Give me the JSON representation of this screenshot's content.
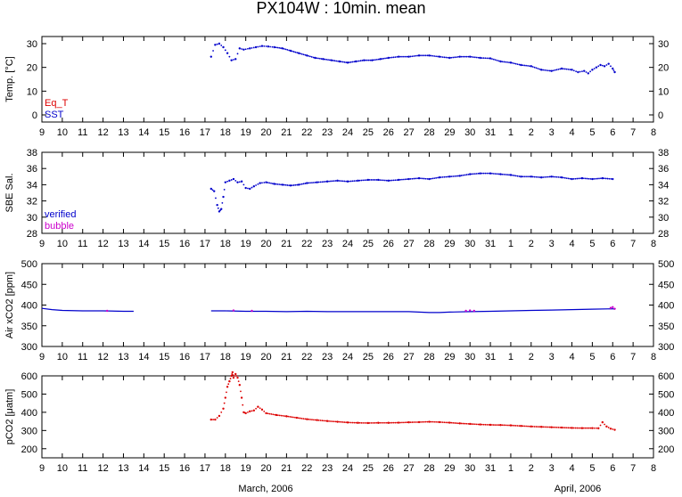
{
  "title": "PX104W : 10min. mean",
  "month_labels": [
    "March, 2006",
    "April, 2006"
  ],
  "x_tick_labels": [
    "9",
    "10",
    "11",
    "12",
    "13",
    "14",
    "15",
    "16",
    "17",
    "18",
    "19",
    "20",
    "21",
    "22",
    "23",
    "24",
    "25",
    "26",
    "27",
    "28",
    "29",
    "30",
    "31",
    "1",
    "2",
    "3",
    "4",
    "5",
    "6",
    "7",
    "8"
  ],
  "colors": {
    "red": "#dd0000",
    "blue": "#0000cc",
    "magenta": "#cc00cc",
    "frame": "#000000"
  },
  "chart_data": [
    {
      "type": "line",
      "id": "temp",
      "ylabel": "Temp. [°C]",
      "ylim": [
        -3,
        33
      ],
      "yticks": [
        0,
        10,
        20,
        30
      ],
      "legend": [
        {
          "name": "Eq_T",
          "color": "#dd0000"
        },
        {
          "name": "SST",
          "color": "#0000cc"
        }
      ],
      "series": [
        {
          "name": "SST",
          "color": "#0000cc",
          "style": "dots",
          "x": [
            17.3,
            17.5,
            17.7,
            17.9,
            18.1,
            18.3,
            18.5,
            18.7,
            18.9,
            19.2,
            19.5,
            19.8,
            20.1,
            20.4,
            20.8,
            21.2,
            21.6,
            22.0,
            22.4,
            22.8,
            23.2,
            23.6,
            24.0,
            24.4,
            24.8,
            25.2,
            25.6,
            26.0,
            26.5,
            27.0,
            27.5,
            28.0,
            28.5,
            29.0,
            29.5,
            30.0,
            30.5,
            31.0,
            31.5,
            32.0,
            32.5,
            33.0,
            33.5,
            34.0,
            34.5,
            35.0,
            35.3,
            35.6,
            35.8,
            36.0,
            36.2,
            36.4,
            36.6,
            36.8,
            37.0,
            37.1
          ],
          "y": [
            24.5,
            29.5,
            30.0,
            28.5,
            26.0,
            23.0,
            23.5,
            28.0,
            27.5,
            28.0,
            28.5,
            29.0,
            28.8,
            28.5,
            28.0,
            27.0,
            26.0,
            25.0,
            24.0,
            23.5,
            23.0,
            22.5,
            22.0,
            22.5,
            23.0,
            23.0,
            23.5,
            24.0,
            24.5,
            24.5,
            25.0,
            25.0,
            24.5,
            24.0,
            24.5,
            24.5,
            24.0,
            23.8,
            22.5,
            22.0,
            21.0,
            20.5,
            19.0,
            18.5,
            19.5,
            19.0,
            18.0,
            18.5,
            17.5,
            19.0,
            20.0,
            21.0,
            20.5,
            21.5,
            19.5,
            18.0
          ]
        }
      ]
    },
    {
      "type": "line",
      "id": "sal",
      "ylabel": "SBE Sal.",
      "ylim": [
        28,
        38
      ],
      "yticks": [
        28,
        30,
        32,
        34,
        36,
        38
      ],
      "legend": [
        {
          "name": "verified",
          "color": "#0000cc"
        },
        {
          "name": "bubble",
          "color": "#cc00cc"
        }
      ],
      "series": [
        {
          "name": "verified",
          "color": "#0000cc",
          "style": "dots",
          "x": [
            17.3,
            17.45,
            17.6,
            17.7,
            17.8,
            17.9,
            18.0,
            18.2,
            18.4,
            18.6,
            18.8,
            19.0,
            19.2,
            19.4,
            19.7,
            20.0,
            20.4,
            20.8,
            21.2,
            21.6,
            22.0,
            22.5,
            23.0,
            23.5,
            24.0,
            24.5,
            25.0,
            25.5,
            26.0,
            26.5,
            27.0,
            27.5,
            28.0,
            28.5,
            29.0,
            29.5,
            30.0,
            30.5,
            31.0,
            31.5,
            32.0,
            32.5,
            33.0,
            33.5,
            34.0,
            34.5,
            35.0,
            35.5,
            36.0,
            36.5,
            37.0
          ],
          "y": [
            33.5,
            33.2,
            31.5,
            30.7,
            31.0,
            32.5,
            34.3,
            34.5,
            34.7,
            34.3,
            34.4,
            33.6,
            33.5,
            33.8,
            34.2,
            34.3,
            34.1,
            34.0,
            33.9,
            34.0,
            34.2,
            34.3,
            34.4,
            34.5,
            34.4,
            34.5,
            34.6,
            34.6,
            34.5,
            34.6,
            34.7,
            34.8,
            34.7,
            34.9,
            35.0,
            35.1,
            35.3,
            35.4,
            35.4,
            35.3,
            35.2,
            35.0,
            35.0,
            34.9,
            35.0,
            34.9,
            34.7,
            34.8,
            34.7,
            34.8,
            34.7
          ]
        }
      ]
    },
    {
      "type": "line",
      "id": "air",
      "ylabel": "Air xCO2 [ppm]",
      "ylim": [
        300,
        500
      ],
      "yticks": [
        300,
        350,
        400,
        450,
        500
      ],
      "series": [
        {
          "name": "verified",
          "color": "#0000cc",
          "style": "line",
          "x": [
            9.0,
            9.5,
            10.0,
            11.0,
            12.0,
            13.0,
            13.5
          ],
          "y": [
            392,
            389,
            387,
            386,
            386,
            385,
            385
          ]
        },
        {
          "name": "verified",
          "color": "#0000cc",
          "style": "line",
          "x": [
            17.3,
            18.0,
            19.0,
            20.0,
            21.0,
            22.0,
            23.0,
            24.0,
            25.0,
            26.0,
            27.0,
            27.5,
            28.0,
            28.5,
            29.0,
            30.0,
            31.0,
            32.0,
            33.0,
            34.0,
            35.0,
            36.0,
            37.0,
            37.1
          ],
          "y": [
            386,
            386,
            385,
            385,
            384,
            385,
            384,
            384,
            384,
            384,
            384,
            383,
            382,
            382,
            383,
            384,
            385,
            386,
            387,
            388,
            389,
            390,
            391,
            390
          ]
        },
        {
          "name": "bubble",
          "color": "#cc00cc",
          "style": "dots",
          "x": [
            12.2,
            18.4,
            19.3,
            29.8,
            30.0,
            30.2,
            36.9,
            37.0,
            37.1
          ],
          "y": [
            386,
            387,
            386,
            386,
            387,
            386,
            393,
            395,
            391
          ]
        }
      ]
    },
    {
      "type": "scatter",
      "id": "pco2",
      "ylabel": "pCO2 [μatm]",
      "ylim": [
        150,
        600
      ],
      "yticks": [
        200,
        300,
        400,
        500,
        600
      ],
      "series": [
        {
          "name": "pCO2",
          "color": "#dd0000",
          "style": "dots",
          "x": [
            17.3,
            17.5,
            17.7,
            17.9,
            18.0,
            18.1,
            18.2,
            18.3,
            18.35,
            18.4,
            18.5,
            18.6,
            18.7,
            18.8,
            18.9,
            19.0,
            19.2,
            19.4,
            19.6,
            19.8,
            20.0,
            20.5,
            21.0,
            21.5,
            22.0,
            22.5,
            23.0,
            23.5,
            24.0,
            24.5,
            25.0,
            25.5,
            26.0,
            26.5,
            27.0,
            27.5,
            28.0,
            28.5,
            29.0,
            29.5,
            30.0,
            30.5,
            31.0,
            31.5,
            32.0,
            32.5,
            33.0,
            33.5,
            34.0,
            34.5,
            35.0,
            35.5,
            36.0,
            36.3,
            36.5,
            36.7,
            36.9,
            37.1
          ],
          "y": [
            360,
            360,
            380,
            420,
            480,
            540,
            570,
            600,
            620,
            590,
            610,
            590,
            550,
            480,
            400,
            395,
            405,
            410,
            430,
            415,
            395,
            385,
            378,
            370,
            362,
            357,
            352,
            348,
            344,
            342,
            341,
            342,
            342,
            343,
            345,
            346,
            348,
            346,
            343,
            339,
            336,
            333,
            331,
            330,
            328,
            325,
            322,
            320,
            318,
            316,
            314,
            313,
            313,
            312,
            345,
            322,
            310,
            304
          ]
        }
      ]
    }
  ]
}
